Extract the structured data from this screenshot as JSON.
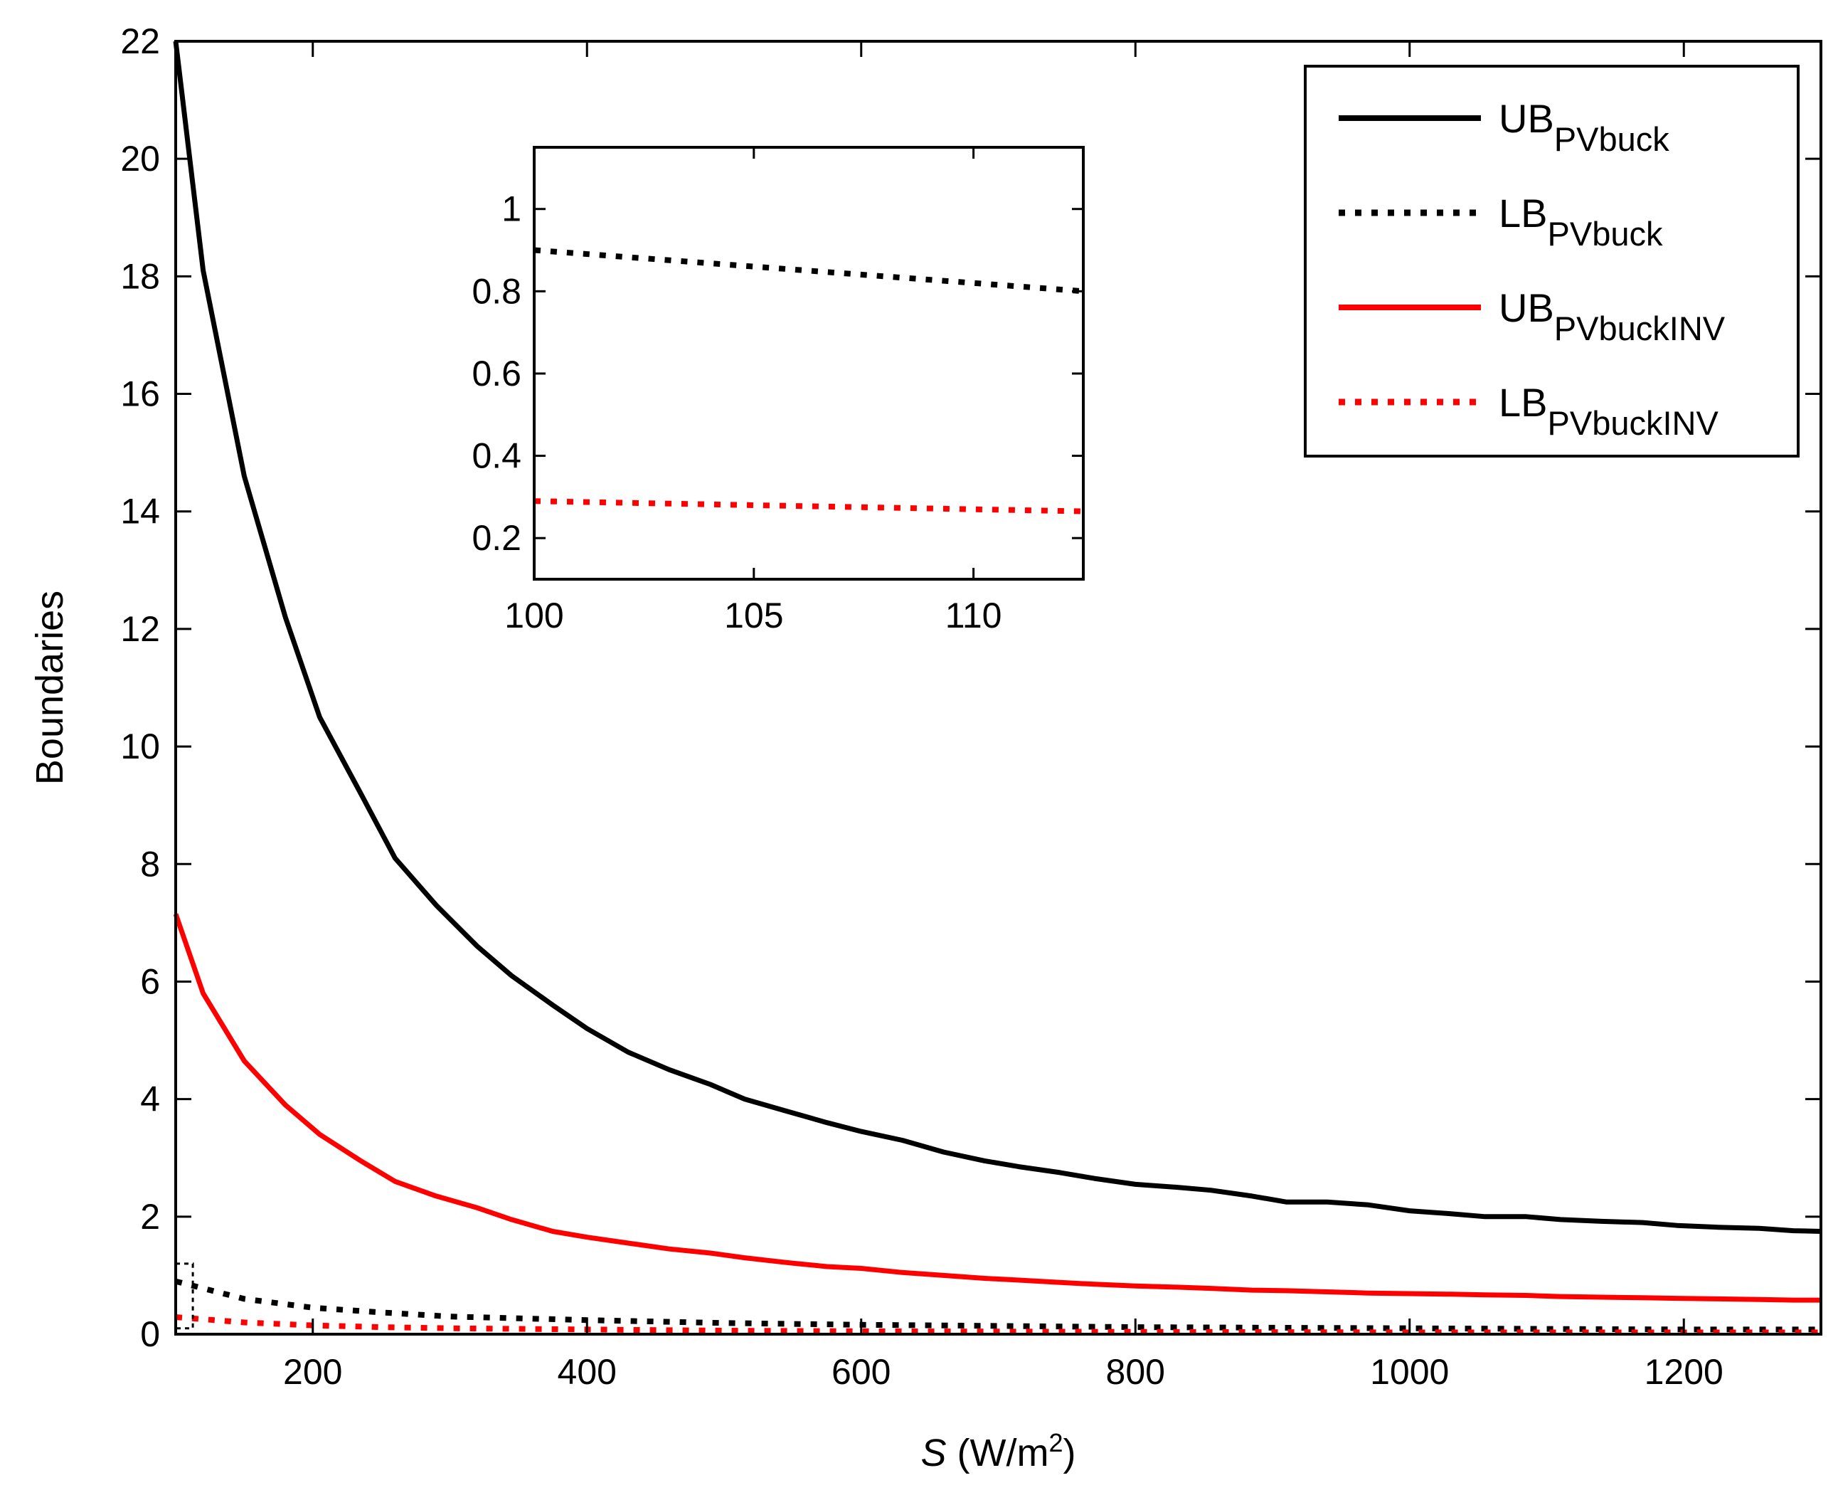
{
  "chart_data": [
    {
      "type": "line",
      "role": "main",
      "title": "",
      "xlabel_italic": "S",
      "xlabel_unit_prefix": " (W/m",
      "xlabel_unit_sup": "2",
      "xlabel_unit_suffix": ")",
      "ylabel": "Boundaries",
      "xlim": [
        100,
        1300
      ],
      "ylim": [
        0,
        22
      ],
      "xticks": [
        200,
        400,
        600,
        800,
        1000,
        1200
      ],
      "yticks": [
        0,
        2,
        4,
        6,
        8,
        10,
        12,
        14,
        16,
        18,
        20,
        22
      ],
      "legend_position": "top-right",
      "zoom_box": {
        "x": [
          100,
          112.5
        ],
        "y": [
          0.1,
          1.2
        ]
      },
      "series": [
        {
          "name": "UB",
          "sub": "PVbuck",
          "color": "#000000",
          "style": "solid",
          "x": [
            100,
            120,
            150,
            180,
            205,
            235,
            260,
            290,
            320,
            345,
            375,
            400,
            430,
            460,
            490,
            515,
            545,
            575,
            600,
            630,
            660,
            690,
            715,
            745,
            770,
            800,
            830,
            855,
            885,
            910,
            940,
            970,
            1000,
            1030,
            1055,
            1085,
            1110,
            1140,
            1170,
            1195,
            1225,
            1255,
            1280,
            1300
          ],
          "y": [
            22.0,
            18.1,
            14.6,
            12.2,
            10.5,
            9.2,
            8.1,
            7.3,
            6.6,
            6.1,
            5.6,
            5.2,
            4.8,
            4.5,
            4.25,
            4.0,
            3.8,
            3.6,
            3.45,
            3.3,
            3.1,
            2.95,
            2.85,
            2.75,
            2.65,
            2.55,
            2.5,
            2.45,
            2.35,
            2.25,
            2.25,
            2.2,
            2.1,
            2.05,
            2.0,
            2.0,
            1.95,
            1.92,
            1.9,
            1.85,
            1.82,
            1.8,
            1.76,
            1.75
          ]
        },
        {
          "name": "LB",
          "sub": "PVbuck",
          "color": "#000000",
          "style": "dotted",
          "x": [
            100,
            150,
            200,
            250,
            300,
            400,
            500,
            600,
            700,
            800,
            900,
            1000,
            1100,
            1200,
            1300
          ],
          "y": [
            0.9,
            0.6,
            0.45,
            0.37,
            0.3,
            0.24,
            0.19,
            0.16,
            0.14,
            0.12,
            0.11,
            0.1,
            0.09,
            0.08,
            0.08
          ]
        },
        {
          "name": "UB",
          "sub": "PVbuckINV",
          "color": "#ff0000",
          "style": "solid",
          "x": [
            100,
            120,
            150,
            180,
            205,
            235,
            260,
            290,
            320,
            345,
            375,
            400,
            430,
            460,
            490,
            515,
            545,
            575,
            600,
            630,
            660,
            690,
            715,
            745,
            770,
            800,
            830,
            855,
            885,
            910,
            940,
            970,
            1000,
            1030,
            1055,
            1085,
            1110,
            1140,
            1170,
            1195,
            1225,
            1255,
            1280,
            1300
          ],
          "y": [
            7.15,
            5.8,
            4.65,
            3.9,
            3.4,
            2.95,
            2.6,
            2.35,
            2.15,
            1.95,
            1.75,
            1.65,
            1.55,
            1.45,
            1.38,
            1.3,
            1.22,
            1.15,
            1.12,
            1.05,
            1.0,
            0.95,
            0.92,
            0.88,
            0.85,
            0.82,
            0.8,
            0.78,
            0.75,
            0.74,
            0.72,
            0.7,
            0.69,
            0.68,
            0.67,
            0.66,
            0.64,
            0.63,
            0.62,
            0.61,
            0.6,
            0.59,
            0.58,
            0.58
          ]
        },
        {
          "name": "LB",
          "sub": "PVbuckINV",
          "color": "#ff0000",
          "style": "dotted",
          "x": [
            100,
            150,
            200,
            250,
            300,
            400,
            500,
            600,
            700,
            800,
            900,
            1000,
            1100,
            1200,
            1300
          ],
          "y": [
            0.29,
            0.2,
            0.15,
            0.12,
            0.1,
            0.08,
            0.06,
            0.05,
            0.045,
            0.04,
            0.035,
            0.03,
            0.03,
            0.03,
            0.03
          ]
        }
      ]
    },
    {
      "type": "line",
      "role": "inset",
      "title": "",
      "xlim": [
        100,
        112.5
      ],
      "ylim": [
        0.1,
        1.15
      ],
      "xticks": [
        100,
        105,
        110
      ],
      "yticks": [
        0.2,
        0.4,
        0.6,
        0.8,
        1
      ],
      "ytick_labels": [
        "0.2",
        "0.4",
        "0.6",
        "0.8",
        "1"
      ],
      "series": [
        {
          "name": "LB",
          "sub": "PVbuck",
          "color": "#000000",
          "style": "dotted",
          "x": [
            100,
            112.5
          ],
          "y": [
            0.9,
            0.8
          ]
        },
        {
          "name": "LB",
          "sub": "PVbuckINV",
          "color": "#ff0000",
          "style": "dotted",
          "x": [
            100,
            112.5
          ],
          "y": [
            0.29,
            0.265
          ]
        }
      ]
    }
  ]
}
